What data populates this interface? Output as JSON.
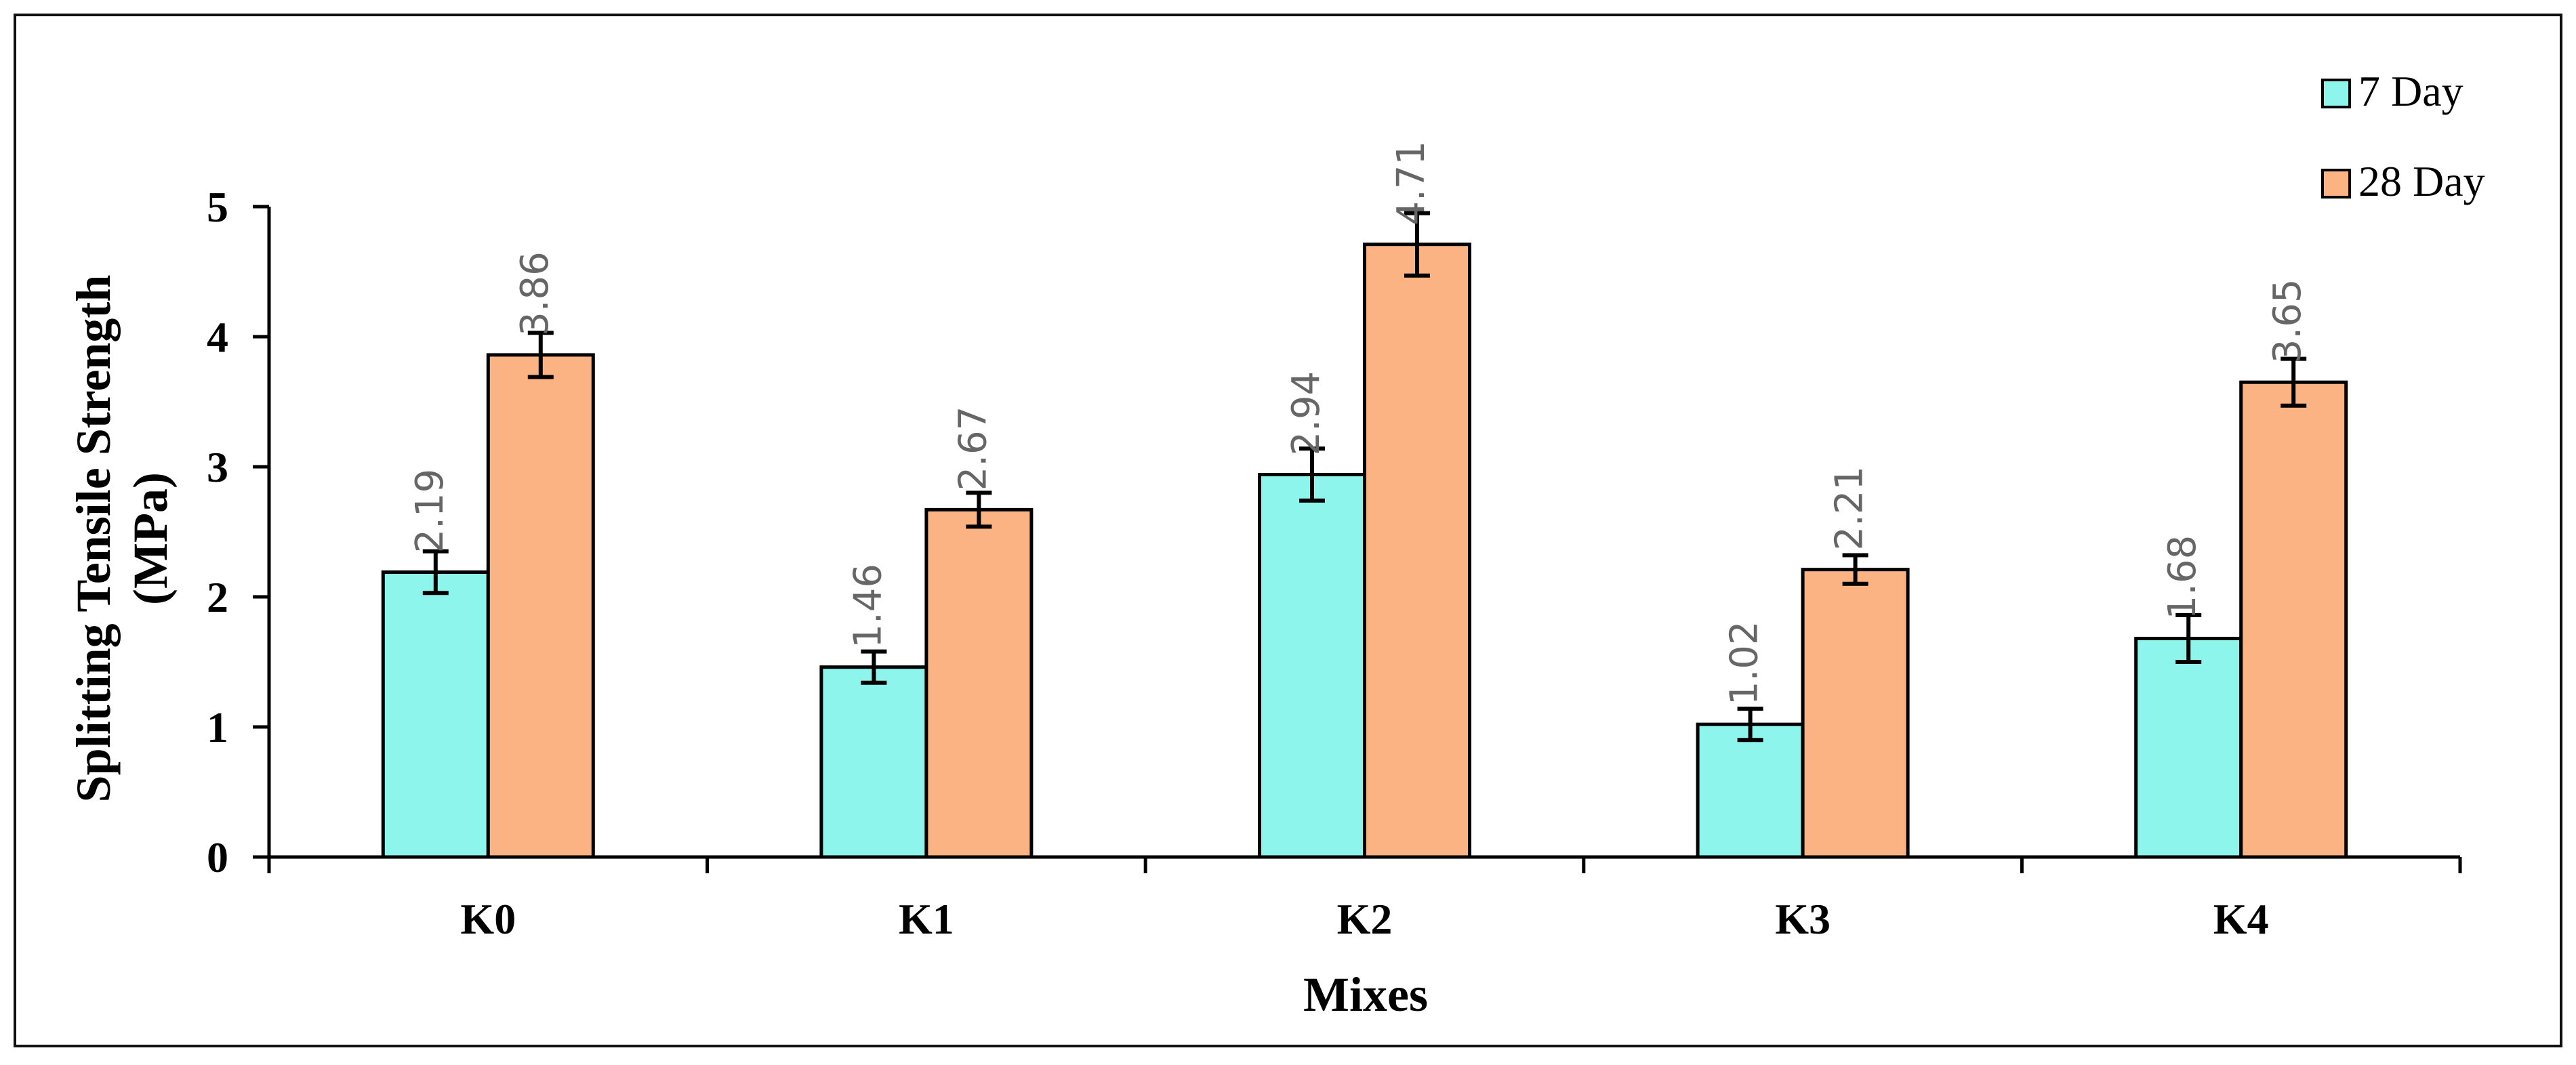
{
  "chart_data": {
    "type": "bar",
    "title": "",
    "xlabel": "Mixes",
    "ylabel_line1": "Splitting Tensile Strength",
    "ylabel_line2": "(MPa)",
    "categories": [
      "K0",
      "K1",
      "K2",
      "K3",
      "K4"
    ],
    "ylim": [
      0,
      5
    ],
    "yticks": [
      "0",
      "1",
      "2",
      "3",
      "4",
      "5"
    ],
    "grid": false,
    "legend_position": "top-right",
    "series": [
      {
        "name": "7 Day",
        "color": "#8ef5ec",
        "values": [
          2.19,
          1.46,
          2.94,
          1.02,
          1.68
        ],
        "labels": [
          "2.19",
          "1.46",
          "2.94",
          "1.02",
          "1.68"
        ],
        "errors": [
          0.16,
          0.12,
          0.2,
          0.12,
          0.18
        ]
      },
      {
        "name": "28 Day",
        "color": "#fbb383",
        "values": [
          3.86,
          2.67,
          4.71,
          2.21,
          3.65
        ],
        "labels": [
          "3.86",
          "2.67",
          "4.71",
          "2.21",
          "3.65"
        ],
        "errors": [
          0.17,
          0.13,
          0.24,
          0.11,
          0.18
        ]
      }
    ]
  }
}
